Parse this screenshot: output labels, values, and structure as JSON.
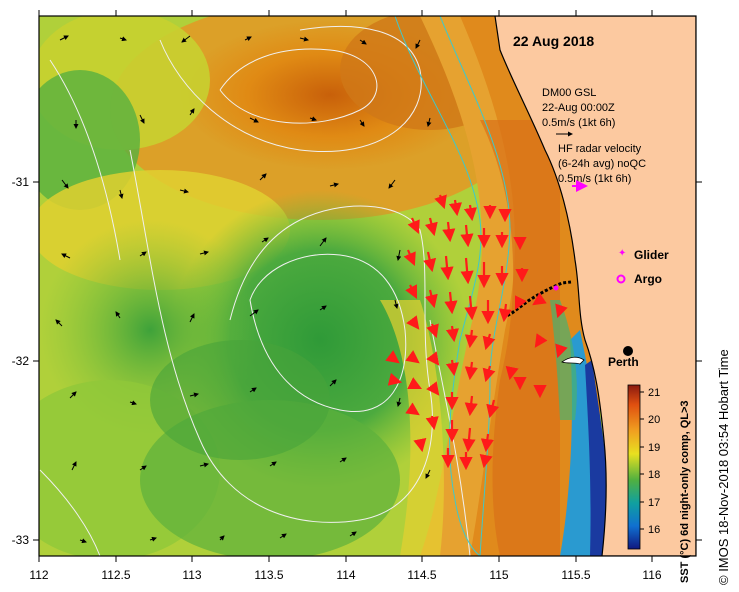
{
  "date_title": "22 Aug 2018",
  "model_legend": {
    "line1": "DM00 GSL",
    "line2": "22-Aug 00:00Z",
    "line3": "0.5m/s (1kt 6h)"
  },
  "radar_legend": {
    "line1": "HF radar velocity",
    "line2": "(6-24h avg) noQC",
    "line3": "0.5m/s (1kt 6h)"
  },
  "glider_label": "Glider",
  "argo_label": "Argo",
  "city_label": "Perth",
  "colorbar": {
    "label": "SST (°C) 6d night-only comp, QL>3",
    "ticks": [
      "21",
      "20",
      "19",
      "18",
      "17",
      "16"
    ]
  },
  "credit": "© IMOS 18-Nov-2018 03:54 Hobart Time",
  "x_ticks": [
    "112",
    "112.5",
    "113",
    "113.5",
    "114",
    "114.5",
    "115",
    "115.5",
    "116"
  ],
  "y_ticks": [
    "-31",
    "-32",
    "-33"
  ],
  "colors": {
    "land": "#fcc9a0",
    "hf_arrow": "#ff2020",
    "glider": "#ff00ff",
    "contour": "#f0f0f0",
    "bathy": "#40c8c8"
  }
}
